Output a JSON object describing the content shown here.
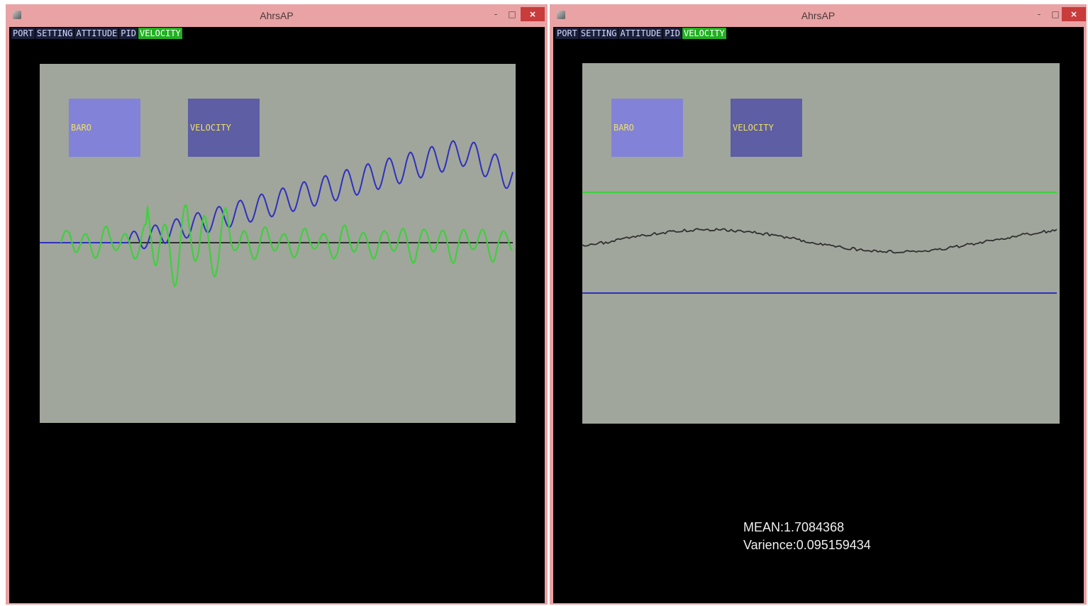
{
  "windows": [
    {
      "title": "AhrsAP",
      "controls": {
        "minimize": "-",
        "maximize": "□",
        "close": "×"
      },
      "menu": [
        "PORT",
        "SETTING",
        "ATTITUDE",
        "PID",
        "VELOCITY"
      ],
      "active_menu": "VELOCITY",
      "buttons": {
        "baro": "BARO",
        "velocity": "VELOCITY"
      },
      "traces": [
        {
          "name": "baro",
          "color": "#2f2fc0"
        },
        {
          "name": "velocity",
          "color": "#3fcf3f"
        },
        {
          "name": "baseline",
          "color": "#303030"
        }
      ]
    },
    {
      "title": "AhrsAP",
      "controls": {
        "minimize": "-",
        "maximize": "□",
        "close": "×"
      },
      "menu": [
        "PORT",
        "SETTING",
        "ATTITUDE",
        "PID",
        "VELOCITY"
      ],
      "active_menu": "VELOCITY",
      "buttons": {
        "baro": "BARO",
        "velocity": "VELOCITY"
      },
      "traces": [
        {
          "name": "upper-limit",
          "color": "#3fcf3f"
        },
        {
          "name": "signal",
          "color": "#303030"
        },
        {
          "name": "lower-limit",
          "color": "#2f2fc0"
        }
      ],
      "stats": {
        "mean": "MEAN:1.7084368",
        "variance": "Varience:0.095159434"
      }
    }
  ],
  "colors": {
    "titlebar": "#e9a3a5",
    "close_button": "#c83c3c",
    "menu_active": "#21b021",
    "plot_background": "#a0a69b",
    "baro_button": "#8283d8",
    "velocity_button": "#5d5ea4",
    "button_text": "#f0e060"
  }
}
